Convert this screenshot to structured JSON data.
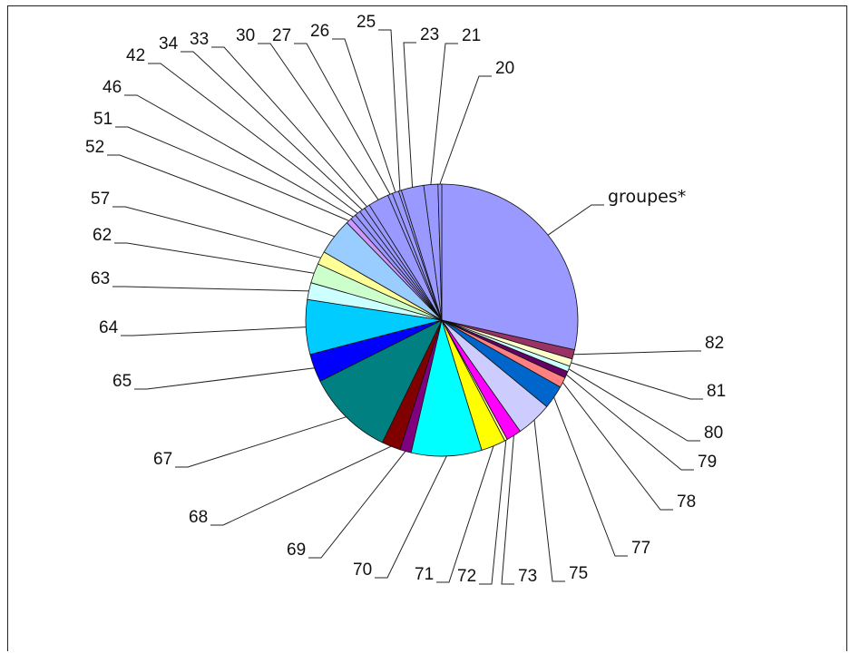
{
  "chart_data": {
    "type": "pie",
    "title": "",
    "legend": "none",
    "slices": [
      {
        "label": "groupes*",
        "value": 25.5,
        "color": "#9999ff"
      },
      {
        "label": "82",
        "value": 1.0,
        "color": "#993366"
      },
      {
        "label": "81",
        "value": 0.8,
        "color": "#ffffcc"
      },
      {
        "label": "80",
        "value": 0.6,
        "color": "#ccffff"
      },
      {
        "label": "79",
        "value": 0.7,
        "color": "#660066"
      },
      {
        "label": "78",
        "value": 1.1,
        "color": "#ff8080"
      },
      {
        "label": "77",
        "value": 2.5,
        "color": "#0066cc"
      },
      {
        "label": "75",
        "value": 3.8,
        "color": "#ccccff"
      },
      {
        "label": "73",
        "value": 1.6,
        "color": "#ff00ff"
      },
      {
        "label": "72",
        "value": 0.3,
        "color": "#ffff99"
      },
      {
        "label": "71",
        "value": 2.6,
        "color": "#ffff00"
      },
      {
        "label": "70",
        "value": 7.5,
        "color": "#00ffff"
      },
      {
        "label": "69",
        "value": 1.2,
        "color": "#800080"
      },
      {
        "label": "68",
        "value": 2.0,
        "color": "#800000"
      },
      {
        "label": "67",
        "value": 9.3,
        "color": "#008080"
      },
      {
        "label": "65",
        "value": 3.0,
        "color": "#0000ff"
      },
      {
        "label": "64",
        "value": 5.8,
        "color": "#00ccff"
      },
      {
        "label": "63",
        "value": 1.8,
        "color": "#ccffff"
      },
      {
        "label": "62",
        "value": 2.1,
        "color": "#ccffcc"
      },
      {
        "label": "57",
        "value": 1.4,
        "color": "#ffff99"
      },
      {
        "label": "52",
        "value": 3.9,
        "color": "#99ccff"
      },
      {
        "label": "51",
        "value": 0.6,
        "color": "#cc99ff"
      },
      {
        "label": "46",
        "value": 0.6,
        "color": "#9999ff"
      },
      {
        "label": "42",
        "value": 0.6,
        "color": "#9999ff"
      },
      {
        "label": "34",
        "value": 0.6,
        "color": "#9999ff"
      },
      {
        "label": "33",
        "value": 0.6,
        "color": "#9999ff"
      },
      {
        "label": "30",
        "value": 2.2,
        "color": "#9999ff"
      },
      {
        "label": "27",
        "value": 0.5,
        "color": "#9999ff"
      },
      {
        "label": "26",
        "value": 0.7,
        "color": "#9999ff"
      },
      {
        "label": "25",
        "value": 0.3,
        "color": "#9999ff"
      },
      {
        "label": "23",
        "value": 2.4,
        "color": "#9999ff"
      },
      {
        "label": "21",
        "value": 1.5,
        "color": "#9999ff"
      },
      {
        "label": "20",
        "value": 0.4,
        "color": "#9999ff"
      }
    ]
  }
}
